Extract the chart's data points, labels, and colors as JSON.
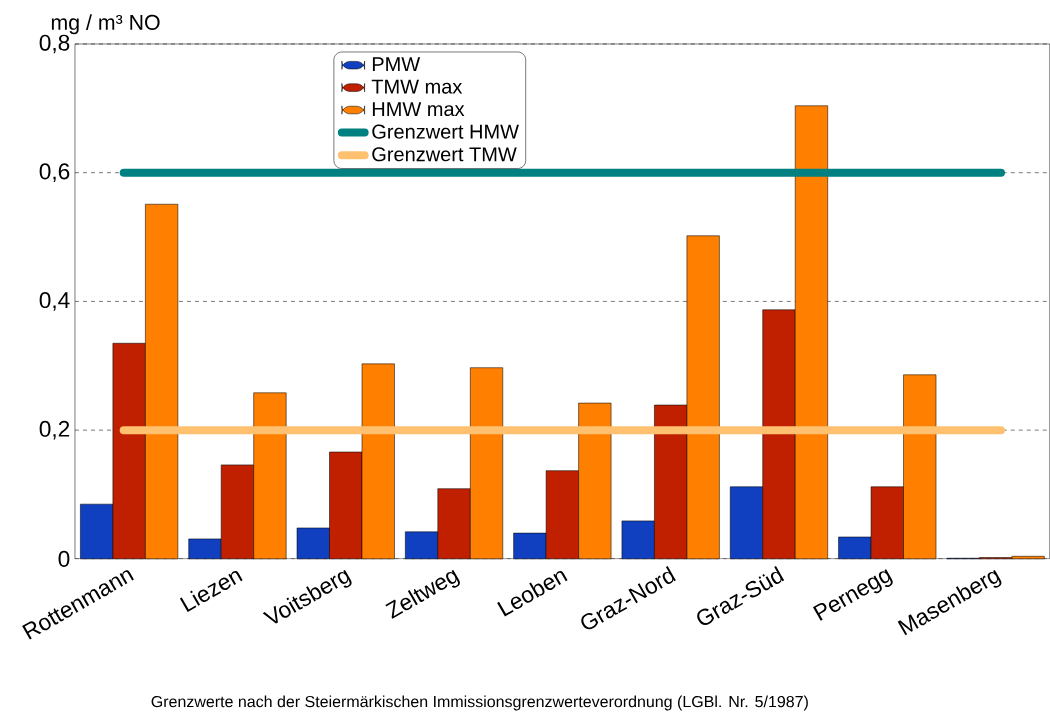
{
  "chart_data": {
    "type": "bar",
    "ylabel": "mg / m³ NO",
    "categories": [
      "Rottenmann",
      "Liezen",
      "Voitsberg",
      "Zeltweg",
      "Leoben",
      "Graz-Nord",
      "Graz-Süd",
      "Pernegg",
      "Masenberg"
    ],
    "series": [
      {
        "name": "PMW",
        "color": "#1040c0",
        "values": [
          0.085,
          0.031,
          0.048,
          0.042,
          0.04,
          0.059,
          0.112,
          0.034,
          0.001
        ]
      },
      {
        "name": "TMW max",
        "color": "#c02000",
        "values": [
          0.335,
          0.146,
          0.166,
          0.109,
          0.137,
          0.239,
          0.387,
          0.112,
          0.002
        ]
      },
      {
        "name": "HMW max",
        "color": "#ff8000",
        "values": [
          0.551,
          0.258,
          0.303,
          0.297,
          0.242,
          0.502,
          0.704,
          0.286,
          0.004
        ]
      }
    ],
    "ylim": [
      0,
      0.8
    ],
    "yticks": [
      0,
      {
        "value": 0.2,
        "label": "0,2"
      },
      {
        "value": 0.4,
        "label": "0,4"
      },
      {
        "value": 0.6,
        "label": "0,6"
      },
      {
        "value": 0.8,
        "label": "0,8"
      }
    ],
    "ref_lines": [
      {
        "axis": "y",
        "value": 0.6,
        "label": "Grenzwert HMW",
        "color": "#008080"
      },
      {
        "axis": "y",
        "value": 0.2,
        "label": "Grenzwert TMW",
        "color": "#ffc070"
      }
    ],
    "grid": "y",
    "legend": "top",
    "annotations": [
      "Grenzwerte nach der Steiermärkischen Immissionsgrenzwerteverordnung (LGBl. Nr. 5/1987)"
    ]
  }
}
